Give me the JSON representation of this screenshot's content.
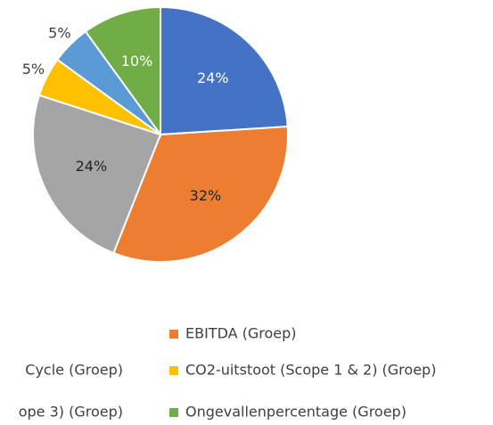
{
  "chart_data": {
    "type": "pie",
    "categories": [
      null,
      "EBITDA (Groep)",
      "Cycle (Groep)",
      "CO2-uitstoot (Scope 1 & 2) (Groep)",
      "ope 3) (Groep)",
      "Ongevallenpercentage (Groep)"
    ],
    "values": [
      24,
      32,
      24,
      5,
      5,
      10
    ],
    "value_labels": [
      "24%",
      "32%",
      "24%",
      "5%",
      "5%",
      "10%"
    ],
    "colors": [
      "#4472c4",
      "#ed7d31",
      "#a5a5a5",
      "#ffc000",
      "#5b9bd5",
      "#70ad47"
    ],
    "label_colors": [
      "#ffffff",
      "#262626",
      "#262626",
      "#404040",
      "#404040",
      "#ffffff"
    ]
  }
}
